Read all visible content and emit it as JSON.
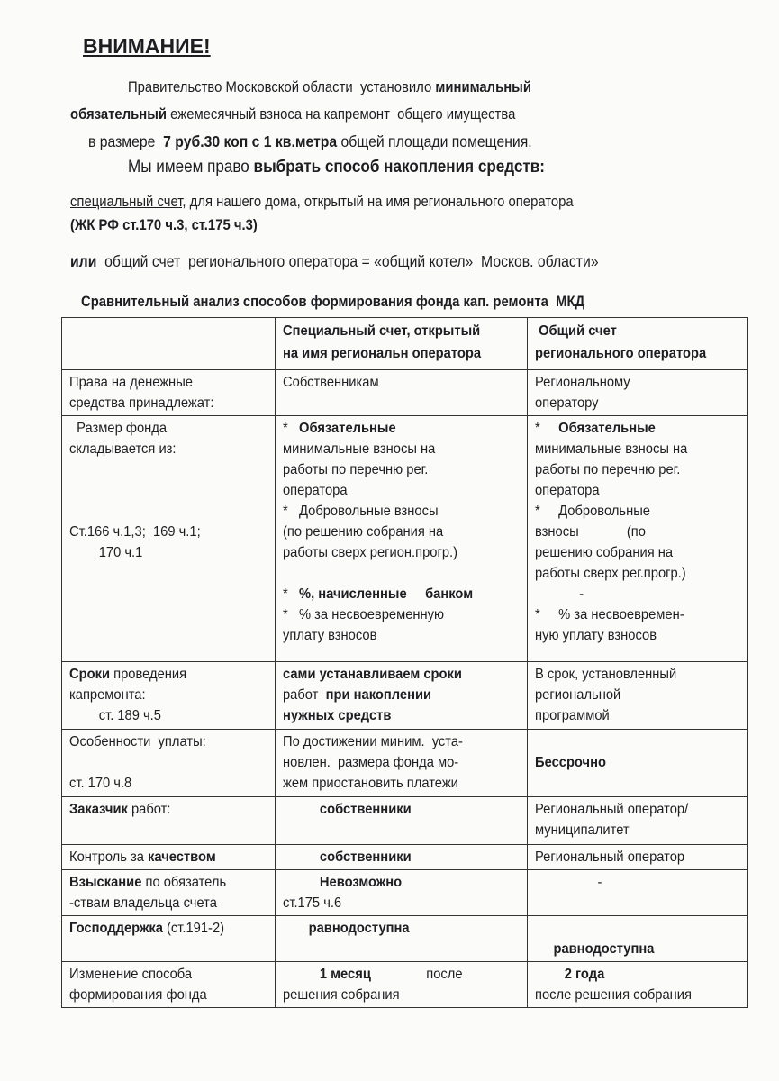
{
  "title": "ВНИМАНИЕ!",
  "intro": [
    [
      {
        "t": "Правительство Московской области  установило "
      },
      {
        "t": "минимальный",
        "b": true
      }
    ],
    [
      {
        "t": "обязательный",
        "b": true
      },
      {
        "t": " ежемесячный взноса на капремонт  общего имущества"
      }
    ],
    [
      {
        "t": "в размере  "
      },
      {
        "t": "7 руб.30 коп с 1 кв.метра",
        "b": true
      },
      {
        "t": " общей площади помещения."
      }
    ],
    [
      {
        "t": "Мы имеем право "
      },
      {
        "t": "выбрать способ накопления средств:",
        "b": true
      }
    ],
    [
      {
        "t": "специальный счет,",
        "u": true
      },
      {
        "t": " для нашего дома, открытый на имя регионального оператора"
      }
    ],
    [
      {
        "t": "(ЖК РФ ст.170 ч.3, ст.175 ч.3)"
      }
    ],
    [
      {
        "t": "или",
        "b": true
      },
      {
        "t": "  "
      },
      {
        "t": "общий счет",
        "u": true
      },
      {
        "t": "  регионального оператора = "
      },
      {
        "t": "«общий котел»",
        "u": true
      },
      {
        "t": "  Москов. области»"
      }
    ],
    [
      {
        "t": "Сравнительный анализ способов формирования фонда кап. ремонта  МКД"
      }
    ]
  ],
  "table": {
    "rows": [
      [
        [],
        [
          [
            {
              "t": "Специальный счет, открытый",
              "b": true
            }
          ],
          [
            {
              "t": "на имя региональн оператора",
              "b": true
            }
          ]
        ],
        [
          [
            {
              "t": " Общий счет",
              "b": true
            }
          ],
          [
            {
              "t": "регионального оператора",
              "b": true
            }
          ]
        ]
      ],
      [
        [
          [
            {
              "t": "Права на денежные"
            }
          ],
          [
            {
              "t": "средства принадлежат:"
            }
          ]
        ],
        [
          [
            {
              "t": "Собственникам"
            }
          ]
        ],
        [
          [
            {
              "t": "Региональному"
            }
          ],
          [
            {
              "t": "оператору"
            }
          ]
        ]
      ],
      [
        [
          [
            {
              "t": "  Размер фонда"
            }
          ],
          [
            {
              "t": "складывается из:"
            }
          ],
          [],
          [],
          [],
          [
            {
              "t": "Ст.166 ч.1,3;  169 ч.1;"
            }
          ],
          [
            {
              "t": "        170 ч.1"
            }
          ]
        ],
        [
          [
            {
              "t": "*   "
            },
            {
              "t": "Обязательные",
              "b": true
            }
          ],
          [
            {
              "t": "минимальные взносы на"
            }
          ],
          [
            {
              "t": "работы по перечню рег."
            }
          ],
          [
            {
              "t": "оператора"
            }
          ],
          [
            {
              "t": "*   Добровольные взносы"
            }
          ],
          [
            {
              "t": "(по решению собрания на"
            }
          ],
          [
            {
              "t": "работы сверх регион.прогр.)"
            }
          ],
          [],
          [
            {
              "t": "*   "
            },
            {
              "t": "%, начисленные     банком",
              "b": true
            }
          ],
          [
            {
              "t": "*   % за несвоевременную"
            }
          ],
          [
            {
              "t": "уплату взносов"
            }
          ]
        ],
        [
          [
            {
              "t": "*     "
            },
            {
              "t": "Обязательные",
              "b": true
            }
          ],
          [
            {
              "t": "минимальные взносы на"
            }
          ],
          [
            {
              "t": "работы по перечню рег."
            }
          ],
          [
            {
              "t": "оператора"
            }
          ],
          [
            {
              "t": "*     Добровольные"
            }
          ],
          [
            {
              "t": "взносы             (по"
            }
          ],
          [
            {
              "t": "решению собрания на"
            }
          ],
          [
            {
              "t": "работы сверх рег.прогр.)"
            }
          ],
          [
            {
              "t": "            -"
            }
          ],
          [
            {
              "t": "*     % за несвоевремен-"
            }
          ],
          [
            {
              "t": "ную уплату взносов"
            }
          ]
        ]
      ],
      [
        [
          [
            {
              "t": "Сроки",
              "b": true
            },
            {
              "t": " проведения"
            }
          ],
          [
            {
              "t": "капремонта:"
            }
          ],
          [
            {
              "t": "        ст. 189 ч.5"
            }
          ]
        ],
        [
          [
            {
              "t": "сами устанавливаем сроки",
              "b": true
            }
          ],
          [
            {
              "t": "работ  "
            },
            {
              "t": "при накоплении",
              "b": true
            }
          ],
          [
            {
              "t": "нужных средств",
              "b": true
            }
          ]
        ],
        [
          [
            {
              "t": "В срок, установленный"
            }
          ],
          [
            {
              "t": "региональной"
            }
          ],
          [
            {
              "t": "программой"
            }
          ]
        ]
      ],
      [
        [
          [
            {
              "t": "Особенности  уплаты:"
            }
          ],
          [],
          [
            {
              "t": "ст. 170 ч.8"
            }
          ]
        ],
        [
          [
            {
              "t": "По достижении миним.  уста-"
            }
          ],
          [
            {
              "t": "новлен.  размера фонда мо-"
            }
          ],
          [
            {
              "t": "жем приостановить платежи"
            }
          ]
        ],
        [
          [],
          [
            {
              "t": "Бессрочно",
              "b": true
            }
          ]
        ]
      ],
      [
        [
          [
            {
              "t": "Заказчик",
              "b": true
            },
            {
              "t": " работ:"
            }
          ]
        ],
        [
          [
            {
              "t": "          собственники",
              "b": true
            }
          ]
        ],
        [
          [
            {
              "t": "Региональный оператор/"
            }
          ],
          [
            {
              "t": "муниципалитет"
            }
          ]
        ]
      ],
      [
        [
          [
            {
              "t": "Контроль за "
            },
            {
              "t": "качеством",
              "b": true
            }
          ]
        ],
        [
          [
            {
              "t": "          собственники",
              "b": true
            }
          ]
        ],
        [
          [
            {
              "t": "Региональный оператор"
            }
          ]
        ]
      ],
      [
        [
          [
            {
              "t": "Взыскание",
              "b": true
            },
            {
              "t": " по обязатель"
            }
          ],
          [
            {
              "t": "-ствам владельца счета"
            }
          ]
        ],
        [
          [
            {
              "t": "          Невозможно",
              "b": true
            }
          ],
          [
            {
              "t": "ст.175 ч.6"
            }
          ]
        ],
        [
          [
            {
              "t": "                 -"
            }
          ]
        ]
      ],
      [
        [
          [
            {
              "t": "Господдержка",
              "b": true
            },
            {
              "t": " (ст.191-2)"
            }
          ]
        ],
        [
          [
            {
              "t": "       равнодоступна",
              "b": true
            }
          ]
        ],
        [
          [],
          [
            {
              "t": "     равнодоступна",
              "b": true
            }
          ]
        ]
      ],
      [
        [
          [
            {
              "t": "Изменение способа"
            }
          ],
          [
            {
              "t": "формирования фонда"
            }
          ]
        ],
        [
          [
            {
              "t": "          1 месяц",
              "b": true
            },
            {
              "t": "               после"
            }
          ],
          [
            {
              "t": "решения собрания"
            }
          ]
        ],
        [
          [
            {
              "t": "        2 года",
              "b": true
            }
          ],
          [
            {
              "t": "после решения собрания"
            }
          ]
        ]
      ]
    ]
  }
}
